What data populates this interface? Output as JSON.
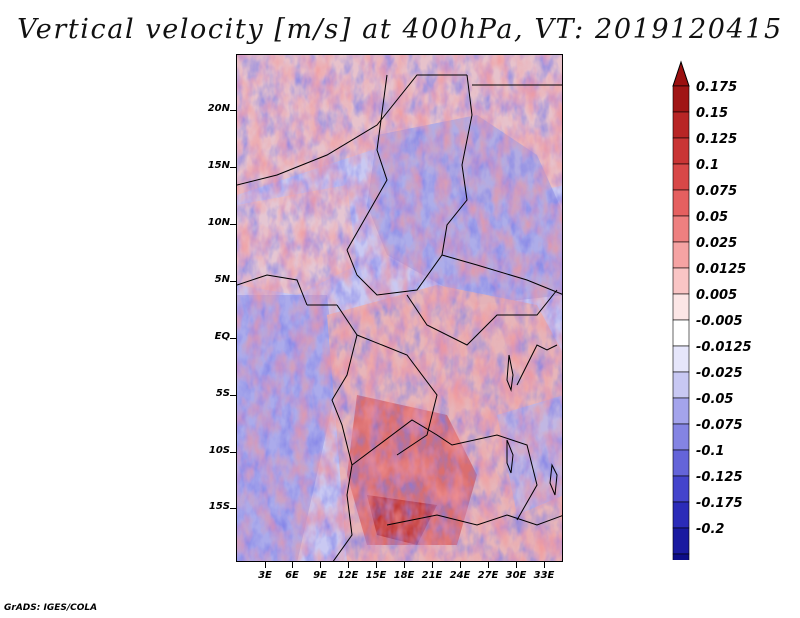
{
  "title": "Vertical velocity [m/s] at 400hPa, VT: 2019120415",
  "footer": "GrADS: IGES/COLA",
  "latitude_labels": [
    "20N",
    "15N",
    "10N",
    "5N",
    "EQ",
    "5S",
    "10S",
    "15S"
  ],
  "longitude_labels": [
    "3E",
    "6E",
    "9E",
    "12E",
    "15E",
    "18E",
    "21E",
    "24E",
    "27E",
    "30E",
    "33E"
  ],
  "colorbar": {
    "labels": [
      "0.175",
      "0.15",
      "0.125",
      "0.1",
      "0.075",
      "0.05",
      "0.025",
      "0.0125",
      "0.005",
      "-0.005",
      "-0.0125",
      "-0.025",
      "-0.05",
      "-0.075",
      "-0.1",
      "-0.125",
      "-0.175",
      "-0.2"
    ],
    "colors": [
      "#a01515",
      "#b82525",
      "#c93535",
      "#d84848",
      "#e56060",
      "#ee8080",
      "#f5a3a3",
      "#f9c5c5",
      "#fce6e6",
      "#ffffff",
      "#e6e6fb",
      "#c8c8f3",
      "#a4a4ec",
      "#8484e3",
      "#6464d9",
      "#4444cc",
      "#2b2bb8",
      "#1a1aa0",
      "#0d0d88"
    ],
    "over_color": "#9b1010",
    "under_color": "#0c0c80"
  }
}
